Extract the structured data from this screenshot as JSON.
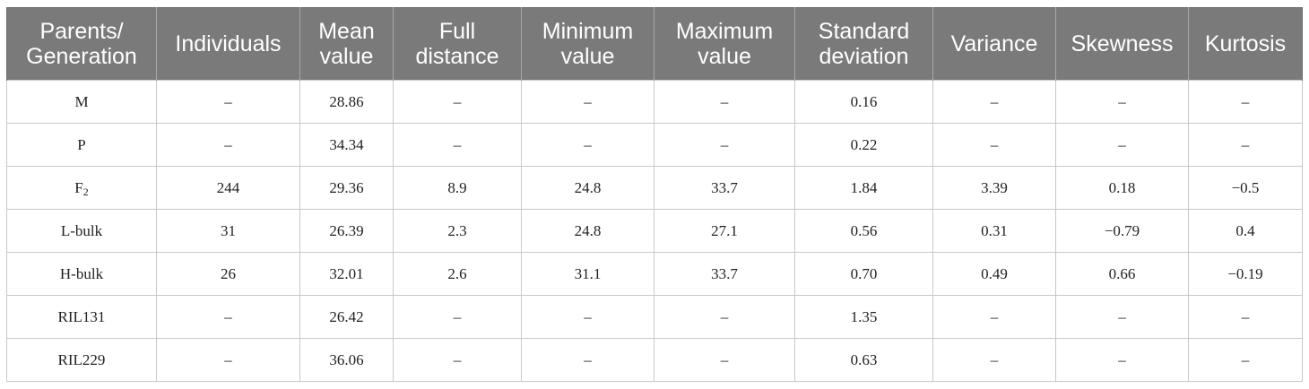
{
  "table": {
    "headers": [
      "Parents/ Generation",
      "Individuals",
      "Mean value",
      "Full distance",
      "Minimum value",
      "Maximum value",
      "Standard deviation",
      "Variance",
      "Skewness",
      "Kurtosis"
    ],
    "rows": [
      {
        "label": "M",
        "sub": "",
        "cells": [
          "–",
          "28.86",
          "–",
          "–",
          "–",
          "0.16",
          "–",
          "–",
          "–"
        ]
      },
      {
        "label": "P",
        "sub": "",
        "cells": [
          "–",
          "34.34",
          "–",
          "–",
          "–",
          "0.22",
          "–",
          "–",
          "–"
        ]
      },
      {
        "label": "F",
        "sub": "2",
        "cells": [
          "244",
          "29.36",
          "8.9",
          "24.8",
          "33.7",
          "1.84",
          "3.39",
          "0.18",
          "−0.5"
        ]
      },
      {
        "label": "L-bulk",
        "sub": "",
        "cells": [
          "31",
          "26.39",
          "2.3",
          "24.8",
          "27.1",
          "0.56",
          "0.31",
          "−0.79",
          "0.4"
        ]
      },
      {
        "label": "H-bulk",
        "sub": "",
        "cells": [
          "26",
          "32.01",
          "2.6",
          "31.1",
          "33.7",
          "0.70",
          "0.49",
          "0.66",
          "−0.19"
        ]
      },
      {
        "label": "RIL131",
        "sub": "",
        "cells": [
          "–",
          "26.42",
          "–",
          "–",
          "–",
          "1.35",
          "–",
          "–",
          "–"
        ]
      },
      {
        "label": "RIL229",
        "sub": "",
        "cells": [
          "–",
          "36.06",
          "–",
          "–",
          "–",
          "0.63",
          "–",
          "–",
          "–"
        ]
      }
    ]
  }
}
